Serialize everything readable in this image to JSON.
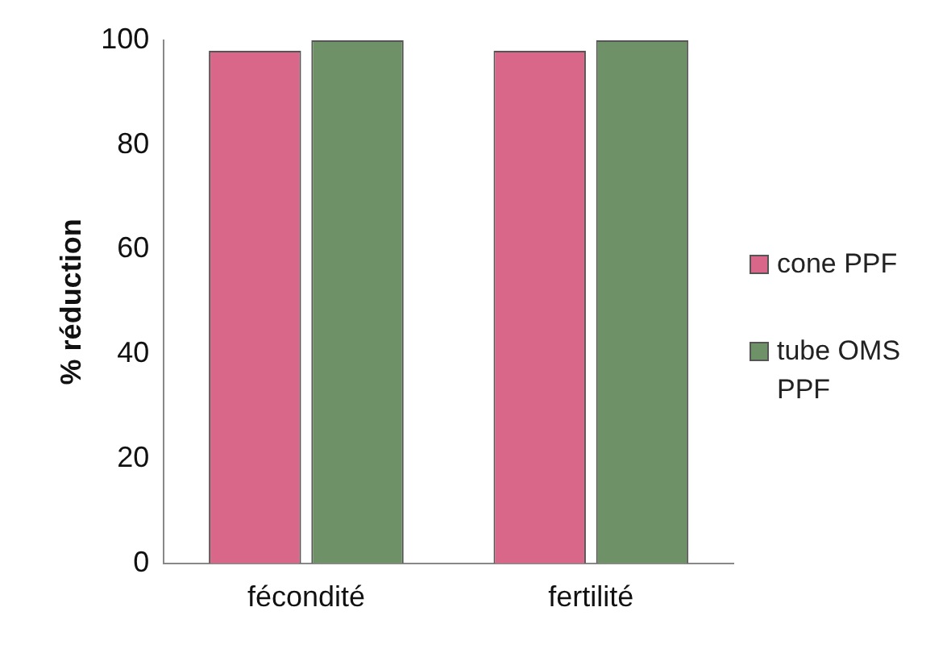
{
  "chart_data": {
    "type": "bar",
    "ylabel": "% réduction",
    "categories": [
      "fécondité",
      "fertilité"
    ],
    "series": [
      {
        "name": "cone PPF",
        "color": "#d9678a",
        "values": [
          98,
          98
        ]
      },
      {
        "name": "tube OMS PPF",
        "color": "#6f9167",
        "values": [
          100,
          100
        ]
      }
    ],
    "ylim": [
      0,
      100
    ],
    "yticks": [
      0,
      20,
      40,
      60,
      80,
      100
    ],
    "grid": false,
    "legend": "right"
  }
}
